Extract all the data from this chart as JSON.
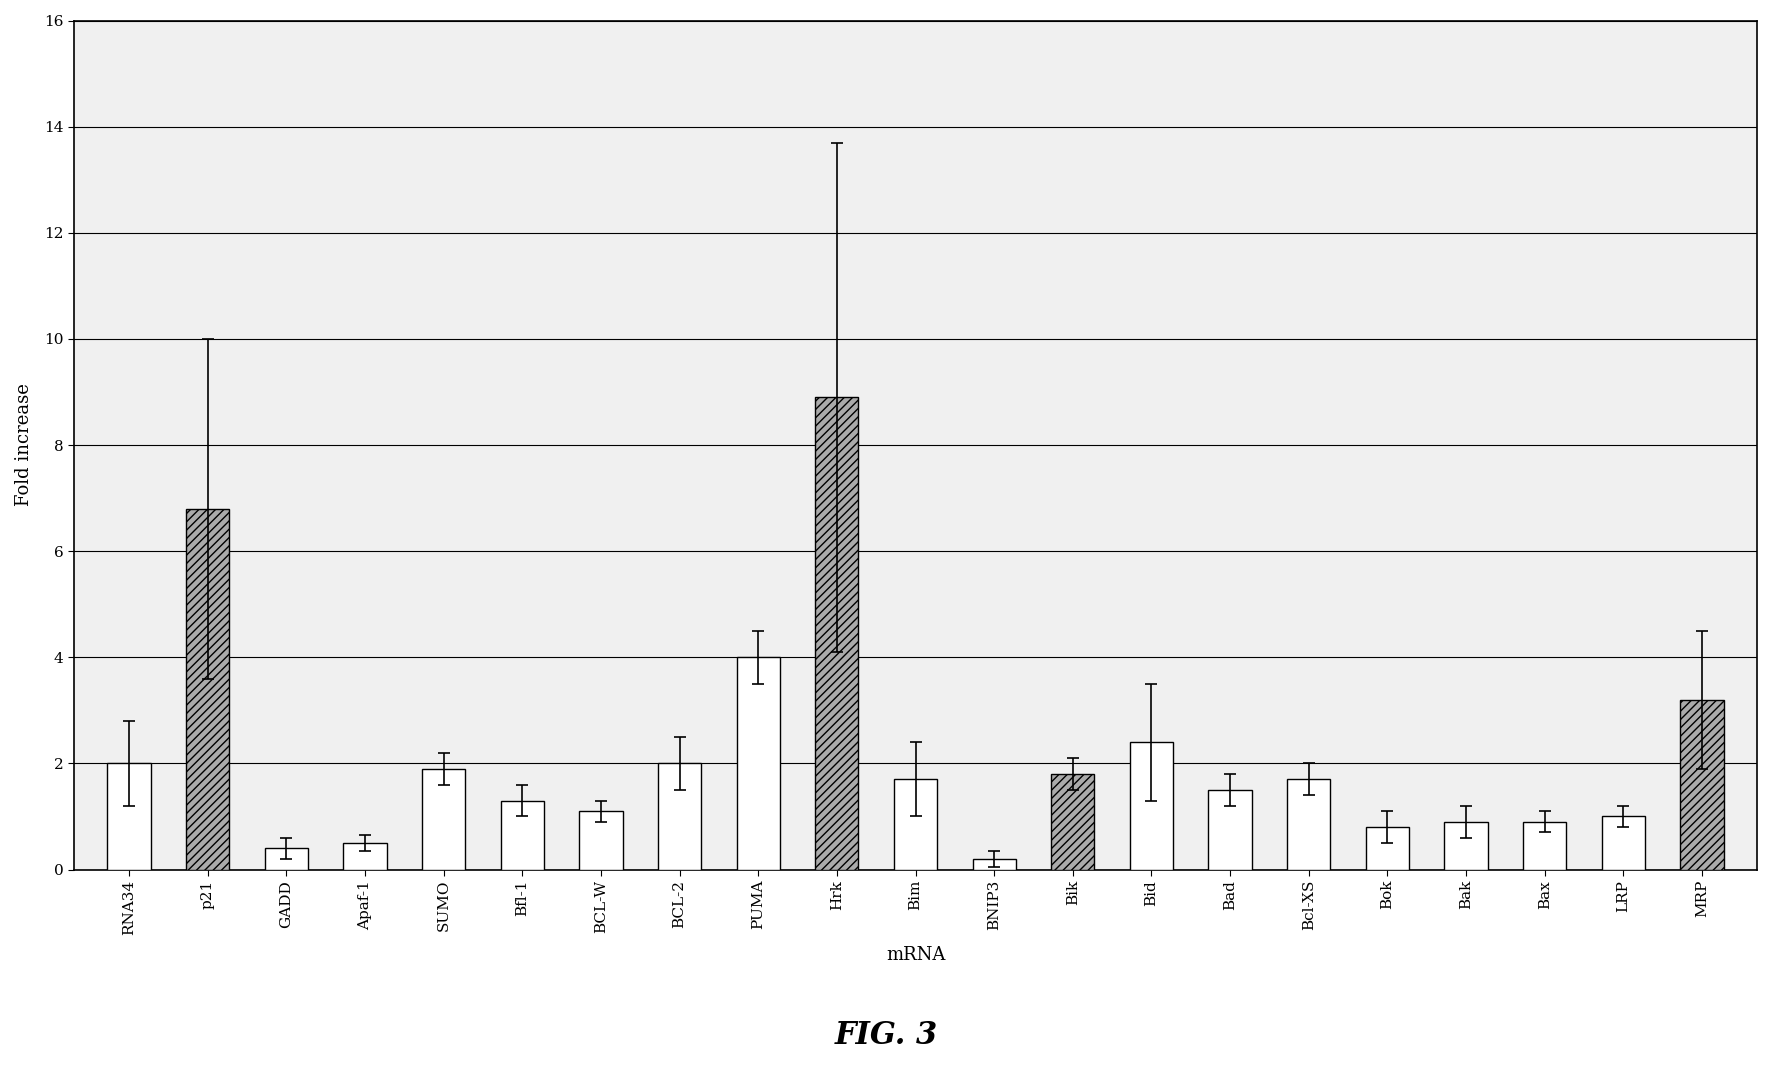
{
  "categories": [
    "RNA34",
    "p21",
    "GADD",
    "Apaf-1",
    "SUMO",
    "Bfl-1",
    "BCL-W",
    "BCL-2",
    "PUMA",
    "Hrk",
    "Bim",
    "BNIP3",
    "Bik",
    "Bid",
    "Bad",
    "Bcl-XS",
    "Bok",
    "Bak",
    "Bax",
    "LRP",
    "MRP"
  ],
  "bar_values": [
    2.0,
    6.8,
    0.4,
    0.5,
    1.9,
    1.3,
    1.1,
    2.0,
    4.0,
    8.9,
    1.7,
    0.2,
    1.8,
    2.4,
    1.5,
    1.7,
    0.8,
    0.9,
    0.9,
    1.0,
    3.2
  ],
  "bar_errors": [
    0.8,
    3.2,
    0.2,
    0.15,
    0.3,
    0.3,
    0.2,
    0.5,
    0.5,
    4.8,
    0.7,
    0.15,
    0.3,
    1.1,
    0.3,
    0.3,
    0.3,
    0.3,
    0.2,
    0.2,
    1.3
  ],
  "is_hatched": [
    false,
    true,
    false,
    false,
    false,
    false,
    false,
    false,
    false,
    true,
    false,
    false,
    true,
    false,
    false,
    false,
    false,
    false,
    false,
    false,
    true
  ],
  "xlabel": "mRNA",
  "ylabel": "Fold increase",
  "ylim": [
    0,
    16
  ],
  "yticks": [
    0,
    2,
    4,
    6,
    8,
    10,
    12,
    14,
    16
  ],
  "figure_label": "FIG. 3",
  "bar_width": 0.55,
  "white_color": "#ffffff",
  "gray_color": "#aaaaaa",
  "edge_color": "#000000",
  "hatch_pattern": "////"
}
